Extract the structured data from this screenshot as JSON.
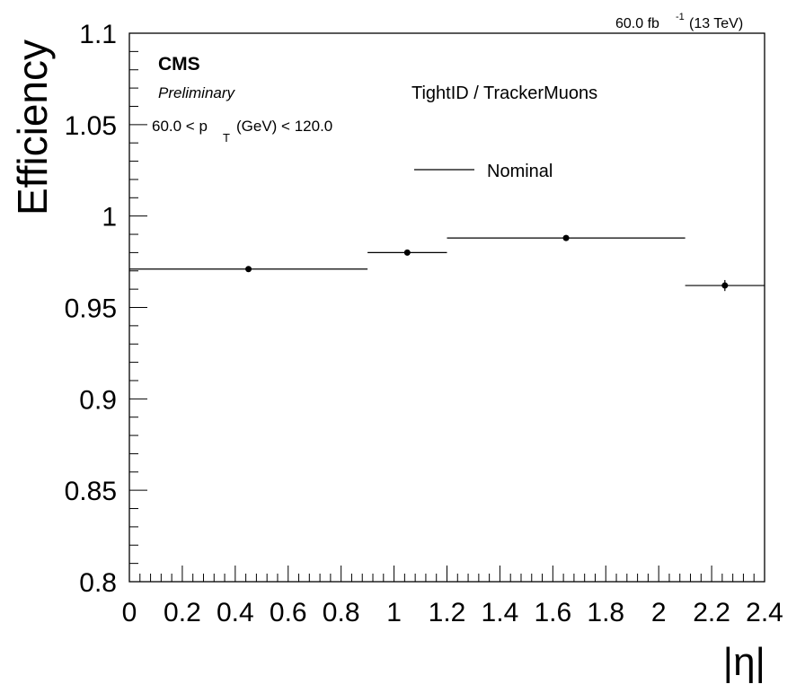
{
  "chart_data": {
    "type": "scatter",
    "style": "histogram-points-with-horizontal-bin-errors",
    "title": "",
    "xlabel": "|η|",
    "ylabel": "Efficiency",
    "xlim": [
      0,
      2.4
    ],
    "ylim": [
      0.8,
      1.1
    ],
    "grid": false,
    "legend_position": "upper-center",
    "x_ticks": [
      "0",
      "0.2",
      "0.4",
      "0.6",
      "0.8",
      "1",
      "1.2",
      "1.4",
      "1.6",
      "1.8",
      "2",
      "2.2",
      "2.4"
    ],
    "y_ticks": [
      "0.8",
      "0.85",
      "0.9",
      "0.95",
      "1",
      "1.05",
      "1.1"
    ],
    "series": [
      {
        "name": "Nominal",
        "color": "#000000",
        "points": [
          {
            "x": 0.45,
            "x_low": 0.0,
            "x_high": 0.9,
            "y": 0.971,
            "y_err": 0.001
          },
          {
            "x": 1.05,
            "x_low": 0.9,
            "x_high": 1.2,
            "y": 0.98,
            "y_err": 0.001
          },
          {
            "x": 1.65,
            "x_low": 1.2,
            "x_high": 2.1,
            "y": 0.988,
            "y_err": 0.001
          },
          {
            "x": 2.25,
            "x_low": 2.1,
            "x_high": 2.4,
            "y": 0.962,
            "y_err": 0.003
          }
        ]
      }
    ],
    "annotations": {
      "experiment": "CMS",
      "status": "Preliminary",
      "selection": "TightID / TrackerMuons",
      "pt_range_prefix": "60.0 < p",
      "pt_range_sub": "T",
      "pt_range_suffix": "(GeV) < 120.0",
      "lumi_value": "60.0 fb",
      "lumi_exp": "-1",
      "lumi_energy": "(13 TeV)"
    }
  }
}
